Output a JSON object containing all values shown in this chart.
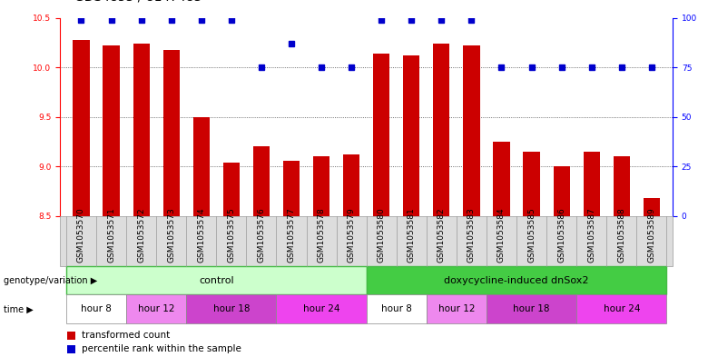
{
  "samples": [
    "GSM1053570",
    "GSM1053571",
    "GSM1053572",
    "GSM1053573",
    "GSM1053574",
    "GSM1053575",
    "GSM1053576",
    "GSM1053577",
    "GSM1053578",
    "GSM1053579",
    "GSM1053580",
    "GSM1053581",
    "GSM1053582",
    "GSM1053583",
    "GSM1053584",
    "GSM1053585",
    "GSM1053586",
    "GSM1053587",
    "GSM1053588",
    "GSM1053589"
  ],
  "transformed_count": [
    10.28,
    10.22,
    10.24,
    10.18,
    9.5,
    9.04,
    9.2,
    9.06,
    9.1,
    9.12,
    10.14,
    10.12,
    10.24,
    10.22,
    9.25,
    9.15,
    9.0,
    9.15,
    9.1,
    8.68
  ],
  "percentile_rank": [
    99,
    99,
    99,
    99,
    99,
    99,
    75,
    87,
    75,
    75,
    99,
    99,
    99,
    99,
    75,
    75,
    75,
    75,
    75,
    75
  ],
  "ylim_left": [
    8.5,
    10.5
  ],
  "ylim_right": [
    0,
    100
  ],
  "yticks_left": [
    8.5,
    9.0,
    9.5,
    10.0,
    10.5
  ],
  "yticks_right": [
    0,
    25,
    50,
    75,
    100
  ],
  "bar_color": "#cc0000",
  "dot_color": "#0000cc",
  "bar_width": 0.55,
  "genotype_groups": [
    {
      "label": "control",
      "start": 0,
      "end": 9,
      "color": "#ccffcc",
      "border": "#44bb44"
    },
    {
      "label": "doxycycline-induced dnSox2",
      "start": 10,
      "end": 19,
      "color": "#44cc44",
      "border": "#44bb44"
    }
  ],
  "time_groups": [
    {
      "label": "hour 8",
      "start": 0,
      "end": 1,
      "color": "#ffffff"
    },
    {
      "label": "hour 12",
      "start": 2,
      "end": 3,
      "color": "#ee88ee"
    },
    {
      "label": "hour 18",
      "start": 4,
      "end": 6,
      "color": "#cc44cc"
    },
    {
      "label": "hour 24",
      "start": 7,
      "end": 9,
      "color": "#ee44ee"
    },
    {
      "label": "hour 8",
      "start": 10,
      "end": 11,
      "color": "#ffffff"
    },
    {
      "label": "hour 12",
      "start": 12,
      "end": 13,
      "color": "#ee88ee"
    },
    {
      "label": "hour 18",
      "start": 14,
      "end": 16,
      "color": "#cc44cc"
    },
    {
      "label": "hour 24",
      "start": 17,
      "end": 19,
      "color": "#ee44ee"
    }
  ],
  "legend_items": [
    {
      "label": "transformed count",
      "color": "#cc0000"
    },
    {
      "label": "percentile rank within the sample",
      "color": "#0000cc"
    }
  ],
  "annotation_row1_label": "genotype/variation",
  "annotation_row2_label": "time",
  "background_color": "#ffffff",
  "title_fontsize": 10,
  "tick_fontsize": 6.5,
  "label_fontsize": 8,
  "gridline_color": "#444444",
  "gridline_style": ":"
}
